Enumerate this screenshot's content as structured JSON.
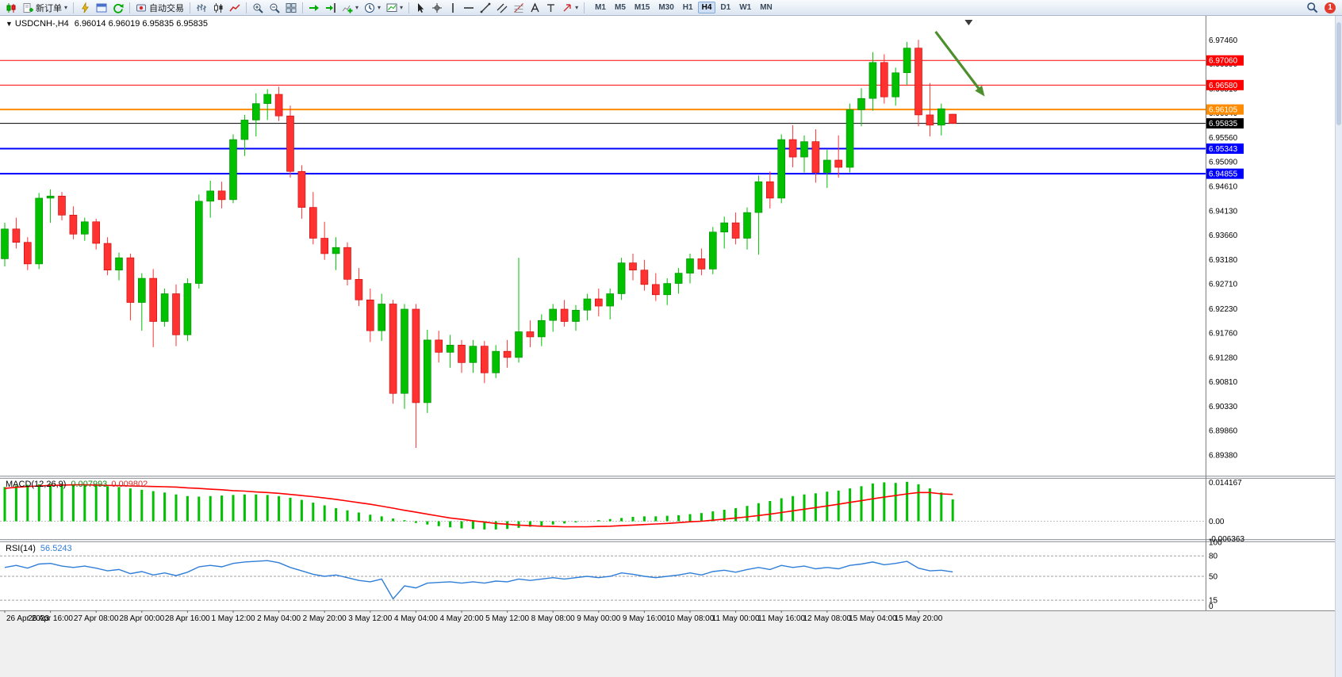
{
  "icons": {
    "collapse": "▼",
    "caret": "▾"
  },
  "toolbar": {
    "new_order_label": "新订单",
    "autotrading_label": "自动交易",
    "timeframes": [
      "M1",
      "M5",
      "M15",
      "M30",
      "H1",
      "H4",
      "D1",
      "W1",
      "MN"
    ],
    "active_timeframe": "H4",
    "notification_count": "1"
  },
  "chart": {
    "symbol_title": "USDCNH-,H4",
    "quote": "6.96014 6.96019 6.95835 6.95835"
  },
  "chart_data": {
    "type": "candlestick",
    "symbol": "USDCNH",
    "timeframe": "H4",
    "ylim": [
      6.8898,
      6.9785
    ],
    "y_ticks": [
      "6.97460",
      "6.96990",
      "6.96510",
      "6.96040",
      "6.95560",
      "6.95090",
      "6.94610",
      "6.94130",
      "6.93660",
      "6.93180",
      "6.92710",
      "6.92230",
      "6.91760",
      "6.91280",
      "6.90810",
      "6.90330",
      "6.89860",
      "6.89380"
    ],
    "x_labels": [
      "26 Apr 2023",
      "26 Apr 16:00",
      "27 Apr 08:00",
      "28 Apr 00:00",
      "28 Apr 16:00",
      "1 May 12:00",
      "2 May 04:00",
      "2 May 20:00",
      "3 May 12:00",
      "4 May 04:00",
      "4 May 20:00",
      "5 May 12:00",
      "8 May 08:00",
      "9 May 00:00",
      "9 May 16:00",
      "10 May 08:00",
      "11 May 00:00",
      "11 May 16:00",
      "12 May 08:00",
      "15 May 04:00",
      "15 May 20:00"
    ],
    "hlines": [
      {
        "price": 6.9706,
        "label": "6.97060",
        "color": "#ff0000",
        "width": 1,
        "current": false
      },
      {
        "price": 6.9658,
        "label": "6.96580",
        "color": "#ff0000",
        "width": 1,
        "current": false
      },
      {
        "price": 6.96105,
        "label": "6.96105",
        "color": "#ff8c00",
        "width": 2,
        "current": false
      },
      {
        "price": 6.95835,
        "label": "6.95835",
        "color": "#000000",
        "width": 1,
        "current": true
      },
      {
        "price": 6.95343,
        "label": "6.95343",
        "color": "#0000ff",
        "width": 2,
        "current": false
      },
      {
        "price": 6.94855,
        "label": "6.94855",
        "color": "#0000ff",
        "width": 2,
        "current": false
      }
    ],
    "arrow_annotation": {
      "bar_from": 81.5,
      "price_from": 6.9762,
      "bar_to": 85.8,
      "price_to": 6.9636,
      "color": "#4e8f2d"
    },
    "shift_marker_bar": 84.4,
    "up_color": "#00c000",
    "down_color": "#ff3232",
    "candles": [
      [
        6.932,
        6.939,
        6.9305,
        6.9378
      ],
      [
        6.9378,
        6.94,
        6.934,
        6.9352
      ],
      [
        6.9352,
        6.9362,
        6.9298,
        6.931
      ],
      [
        6.931,
        6.9448,
        6.93,
        6.9438
      ],
      [
        6.9438,
        6.9455,
        6.939,
        6.9442
      ],
      [
        6.9442,
        6.945,
        6.9395,
        6.9405
      ],
      [
        6.9405,
        6.9422,
        6.9358,
        6.9368
      ],
      [
        6.9368,
        6.94,
        6.9355,
        6.9392
      ],
      [
        6.9392,
        6.9398,
        6.9338,
        6.935
      ],
      [
        6.935,
        6.9362,
        6.9288,
        6.9298
      ],
      [
        6.9298,
        6.9332,
        6.9278,
        6.9322
      ],
      [
        6.9322,
        6.933,
        6.92,
        6.9235
      ],
      [
        6.9235,
        6.9292,
        6.918,
        6.9282
      ],
      [
        6.9282,
        6.93,
        6.9148,
        6.9198
      ],
      [
        6.9198,
        6.9262,
        6.9188,
        6.9252
      ],
      [
        6.9252,
        6.927,
        6.915,
        6.9172
      ],
      [
        6.9172,
        6.9282,
        6.916,
        6.9272
      ],
      [
        6.9272,
        6.9445,
        6.9262,
        6.9432
      ],
      [
        6.9432,
        6.9472,
        6.94,
        6.9452
      ],
      [
        6.9452,
        6.947,
        6.9418,
        6.9435
      ],
      [
        6.9435,
        6.9562,
        6.9428,
        6.9552
      ],
      [
        6.9552,
        6.96,
        6.952,
        6.959
      ],
      [
        6.959,
        6.9642,
        6.9558,
        6.9622
      ],
      [
        6.9622,
        6.965,
        6.959,
        6.964
      ],
      [
        6.964,
        6.9655,
        6.9588,
        6.9598
      ],
      [
        6.9598,
        6.9618,
        6.9478,
        6.949
      ],
      [
        6.949,
        6.9502,
        6.9398,
        6.942
      ],
      [
        6.942,
        6.945,
        6.9348,
        6.936
      ],
      [
        6.936,
        6.9392,
        6.9318,
        6.933
      ],
      [
        6.933,
        6.9362,
        6.9298,
        6.9342
      ],
      [
        6.9342,
        6.9352,
        6.9268,
        6.928
      ],
      [
        6.928,
        6.9302,
        6.9228,
        6.924
      ],
      [
        6.924,
        6.9262,
        6.9158,
        6.918
      ],
      [
        6.918,
        6.9252,
        6.916,
        6.9232
      ],
      [
        6.9232,
        6.924,
        6.9038,
        6.9058
      ],
      [
        6.9058,
        6.9232,
        6.9028,
        6.9222
      ],
      [
        6.9222,
        6.9232,
        6.8952,
        6.904
      ],
      [
        6.904,
        6.9182,
        6.902,
        6.9162
      ],
      [
        6.9162,
        6.918,
        6.9118,
        6.9138
      ],
      [
        6.9138,
        6.9172,
        6.9108,
        6.9152
      ],
      [
        6.9152,
        6.9162,
        6.9098,
        6.9118
      ],
      [
        6.9118,
        6.9162,
        6.9098,
        6.915
      ],
      [
        6.915,
        6.916,
        6.9078,
        6.9098
      ],
      [
        6.9098,
        6.9152,
        6.9088,
        6.914
      ],
      [
        6.914,
        6.9162,
        6.9108,
        6.9128
      ],
      [
        6.9128,
        6.9322,
        6.9118,
        6.9178
      ],
      [
        6.9178,
        6.92,
        6.9148,
        6.9168
      ],
      [
        6.9168,
        6.9212,
        6.915,
        6.92
      ],
      [
        6.92,
        6.9232,
        6.9178,
        6.9222
      ],
      [
        6.9222,
        6.924,
        6.9188,
        6.9198
      ],
      [
        6.9198,
        6.923,
        6.918,
        6.922
      ],
      [
        6.922,
        6.9252,
        6.92,
        6.9242
      ],
      [
        6.9242,
        6.9262,
        6.9208,
        6.9228
      ],
      [
        6.9228,
        6.9262,
        6.9202,
        6.9252
      ],
      [
        6.9252,
        6.9322,
        6.924,
        6.9312
      ],
      [
        6.9312,
        6.933,
        6.9278,
        6.9298
      ],
      [
        6.9298,
        6.9318,
        6.9258,
        6.927
      ],
      [
        6.927,
        6.9292,
        6.9238,
        6.925
      ],
      [
        6.925,
        6.9282,
        6.923,
        6.9272
      ],
      [
        6.9272,
        6.9302,
        6.9252,
        6.9292
      ],
      [
        6.9292,
        6.933,
        6.9272,
        6.932
      ],
      [
        6.932,
        6.934,
        6.9288,
        6.93
      ],
      [
        6.93,
        6.9382,
        6.929,
        6.9372
      ],
      [
        6.9372,
        6.9402,
        6.934,
        6.939
      ],
      [
        6.939,
        6.941,
        6.9348,
        6.936
      ],
      [
        6.936,
        6.942,
        6.9338,
        6.941
      ],
      [
        6.941,
        6.9482,
        6.9328,
        6.947
      ],
      [
        6.947,
        6.949,
        6.9418,
        6.9438
      ],
      [
        6.9438,
        6.9562,
        6.9428,
        6.9552
      ],
      [
        6.9552,
        6.958,
        6.9498,
        6.9518
      ],
      [
        6.9518,
        6.956,
        6.9488,
        6.9548
      ],
      [
        6.9548,
        6.9572,
        6.9468,
        6.9488
      ],
      [
        6.9488,
        6.9532,
        6.9458,
        6.9512
      ],
      [
        6.9512,
        6.956,
        6.9478,
        6.9498
      ],
      [
        6.9498,
        6.9622,
        6.9488,
        6.961
      ],
      [
        6.961,
        6.9652,
        6.9578,
        6.9632
      ],
      [
        6.9632,
        6.9722,
        6.9608,
        6.9702
      ],
      [
        6.9702,
        6.9718,
        6.9622,
        6.9635
      ],
      [
        6.9635,
        6.9692,
        6.9618,
        6.9682
      ],
      [
        6.9682,
        6.9742,
        6.9658,
        6.973
      ],
      [
        6.973,
        6.9746,
        6.9578,
        6.96
      ],
      [
        6.96,
        6.9662,
        6.9558,
        6.958
      ],
      [
        6.958,
        6.9622,
        6.956,
        6.9612
      ],
      [
        6.96014,
        6.96019,
        6.95835,
        6.95835
      ]
    ],
    "macd": {
      "label": "MACD(12,26,9)",
      "value_main": "0.007993",
      "value_signal": "0.009802",
      "axis_ticks": [
        "0.014167",
        "0.00",
        "-0.006363"
      ],
      "ylim": [
        -0.0065,
        0.0155
      ],
      "hist_color": "#00c000",
      "signal_color": "#ff0000",
      "hist": [
        0.0125,
        0.013,
        0.0133,
        0.0135,
        0.0136,
        0.0135,
        0.0133,
        0.0132,
        0.013,
        0.0128,
        0.0125,
        0.012,
        0.0115,
        0.011,
        0.0105,
        0.0098,
        0.0092,
        0.009,
        0.0092,
        0.0094,
        0.0096,
        0.0098,
        0.0098,
        0.0096,
        0.0092,
        0.0086,
        0.0078,
        0.0068,
        0.0058,
        0.0048,
        0.004,
        0.0032,
        0.0024,
        0.0018,
        0.001,
        0.0004,
        -0.0006,
        -0.0012,
        -0.0018,
        -0.0022,
        -0.0026,
        -0.0028,
        -0.003,
        -0.003,
        -0.0028,
        -0.0024,
        -0.002,
        -0.0016,
        -0.0012,
        -0.0008,
        -0.0004,
        0.0,
        0.0004,
        0.0008,
        0.0012,
        0.0016,
        0.0018,
        0.0018,
        0.002,
        0.0022,
        0.0026,
        0.003,
        0.0036,
        0.0042,
        0.0048,
        0.0056,
        0.0066,
        0.0074,
        0.0084,
        0.0092,
        0.0098,
        0.0102,
        0.0108,
        0.0112,
        0.012,
        0.0128,
        0.0138,
        0.0142,
        0.014,
        0.0144,
        0.0135,
        0.012,
        0.0105,
        0.008
      ],
      "signal": [
        0.012,
        0.0124,
        0.0127,
        0.0129,
        0.0131,
        0.0132,
        0.0133,
        0.0133,
        0.0132,
        0.0131,
        0.013,
        0.0129,
        0.0128,
        0.0127,
        0.0126,
        0.0125,
        0.0122,
        0.012,
        0.0117,
        0.0115,
        0.0112,
        0.011,
        0.0107,
        0.0105,
        0.0102,
        0.0098,
        0.0094,
        0.009,
        0.0085,
        0.008,
        0.0074,
        0.0068,
        0.0062,
        0.0055,
        0.0048,
        0.004,
        0.0033,
        0.0026,
        0.0019,
        0.0012,
        0.0007,
        0.0002,
        -0.0003,
        -0.0008,
        -0.0011,
        -0.0014,
        -0.0016,
        -0.0018,
        -0.0019,
        -0.002,
        -0.002,
        -0.002,
        -0.0019,
        -0.0018,
        -0.0016,
        -0.0014,
        -0.0012,
        -0.001,
        -0.0008,
        -0.0005,
        -0.0002,
        0.0,
        0.0004,
        0.0008,
        0.0012,
        0.0016,
        0.0021,
        0.0026,
        0.0032,
        0.0038,
        0.0044,
        0.005,
        0.0056,
        0.0062,
        0.0069,
        0.0075,
        0.0082,
        0.0088,
        0.0094,
        0.01,
        0.0105,
        0.0105,
        0.01,
        0.0098
      ]
    },
    "rsi": {
      "label": "RSI(14)",
      "value": "56.5243",
      "line_color": "#2f7ed8",
      "levels": [
        80,
        50,
        15
      ],
      "axis_ticks": [
        "100",
        "80",
        "50",
        "15",
        "0"
      ],
      "ylim": [
        0,
        100
      ],
      "values": [
        63,
        66,
        62,
        68,
        69,
        65,
        63,
        65,
        62,
        58,
        60,
        54,
        57,
        52,
        55,
        51,
        56,
        64,
        66,
        64,
        69,
        71,
        72,
        73,
        70,
        63,
        58,
        53,
        50,
        52,
        48,
        44,
        42,
        46,
        17,
        36,
        33,
        40,
        41,
        42,
        40,
        42,
        40,
        43,
        42,
        46,
        44,
        46,
        48,
        46,
        48,
        50,
        48,
        50,
        55,
        53,
        50,
        48,
        50,
        52,
        55,
        52,
        57,
        59,
        56,
        60,
        63,
        60,
        66,
        63,
        65,
        61,
        63,
        61,
        66,
        68,
        71,
        67,
        69,
        72,
        62,
        58,
        59,
        56.52
      ]
    }
  }
}
